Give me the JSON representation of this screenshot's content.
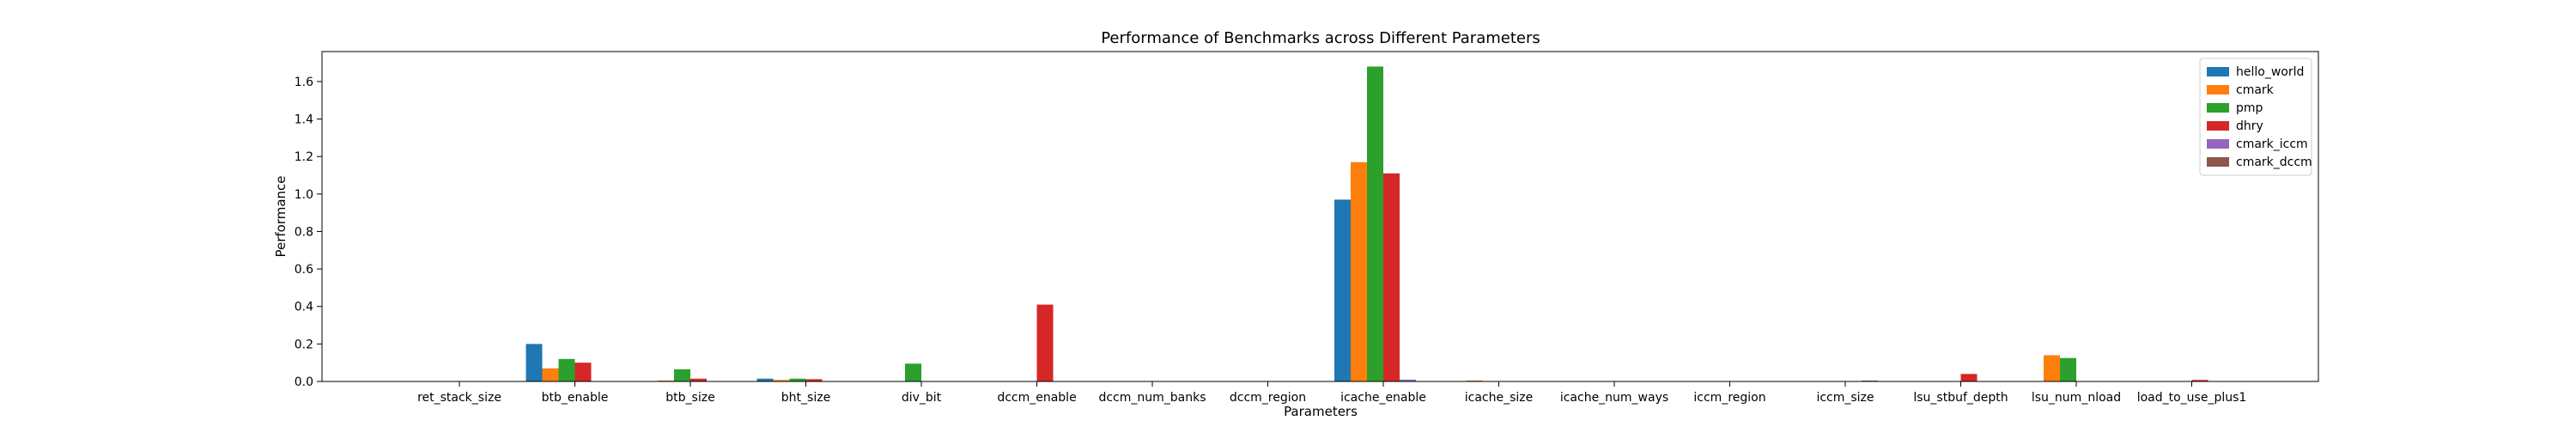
{
  "chart_data": {
    "type": "bar",
    "title": "Performance of Benchmarks across Different Parameters",
    "xlabel": "Parameters",
    "ylabel": "Performance",
    "ylim": [
      0,
      1.76
    ],
    "yticks": [
      0.0,
      0.2,
      0.4,
      0.6,
      0.8,
      1.0,
      1.2,
      1.4,
      1.6
    ],
    "ytick_labels": [
      "0.0",
      "0.2",
      "0.4",
      "0.6",
      "0.8",
      "1.0",
      "1.2",
      "1.4",
      "1.6"
    ],
    "grid": false,
    "legend_position": "top-right",
    "categories": [
      "ret_stack_size",
      "btb_enable",
      "btb_size",
      "bht_size",
      "div_bit",
      "dccm_enable",
      "dccm_num_banks",
      "dccm_region",
      "icache_enable",
      "icache_size",
      "icache_num_ways",
      "iccm_region",
      "iccm_size",
      "lsu_stbuf_depth",
      "lsu_num_nload",
      "load_to_use_plus1"
    ],
    "series": [
      {
        "name": "hello_world",
        "color": "#1f77b4",
        "values": [
          0,
          0.2,
          0,
          0.015,
          0,
          0,
          0,
          0,
          0.97,
          0,
          0,
          0,
          0,
          0,
          0,
          0
        ]
      },
      {
        "name": "cmark",
        "color": "#ff7f0e",
        "values": [
          0,
          0.07,
          0.005,
          0.008,
          0,
          0,
          0,
          0,
          1.17,
          0.005,
          0,
          0,
          0,
          0,
          0.14,
          0
        ]
      },
      {
        "name": "pmp",
        "color": "#2ca02c",
        "values": [
          0,
          0.12,
          0.065,
          0.015,
          0.095,
          0,
          0,
          0,
          1.68,
          0,
          0,
          0,
          0,
          0,
          0.125,
          0
        ]
      },
      {
        "name": "dhry",
        "color": "#d62728",
        "values": [
          0,
          0.1,
          0.015,
          0.012,
          0,
          0.41,
          0,
          0,
          1.11,
          0,
          0,
          0,
          0,
          0.04,
          0,
          0.008
        ]
      },
      {
        "name": "cmark_iccm",
        "color": "#9467bd",
        "values": [
          0,
          0,
          0,
          0,
          0,
          0,
          0,
          0,
          0.01,
          0,
          0,
          0,
          0.005,
          0,
          0,
          0
        ]
      },
      {
        "name": "cmark_dccm",
        "color": "#8c564b",
        "values": [
          0,
          0,
          0,
          0,
          0,
          0,
          0,
          0,
          0,
          0,
          0,
          0,
          0,
          0,
          0,
          0
        ]
      }
    ]
  }
}
